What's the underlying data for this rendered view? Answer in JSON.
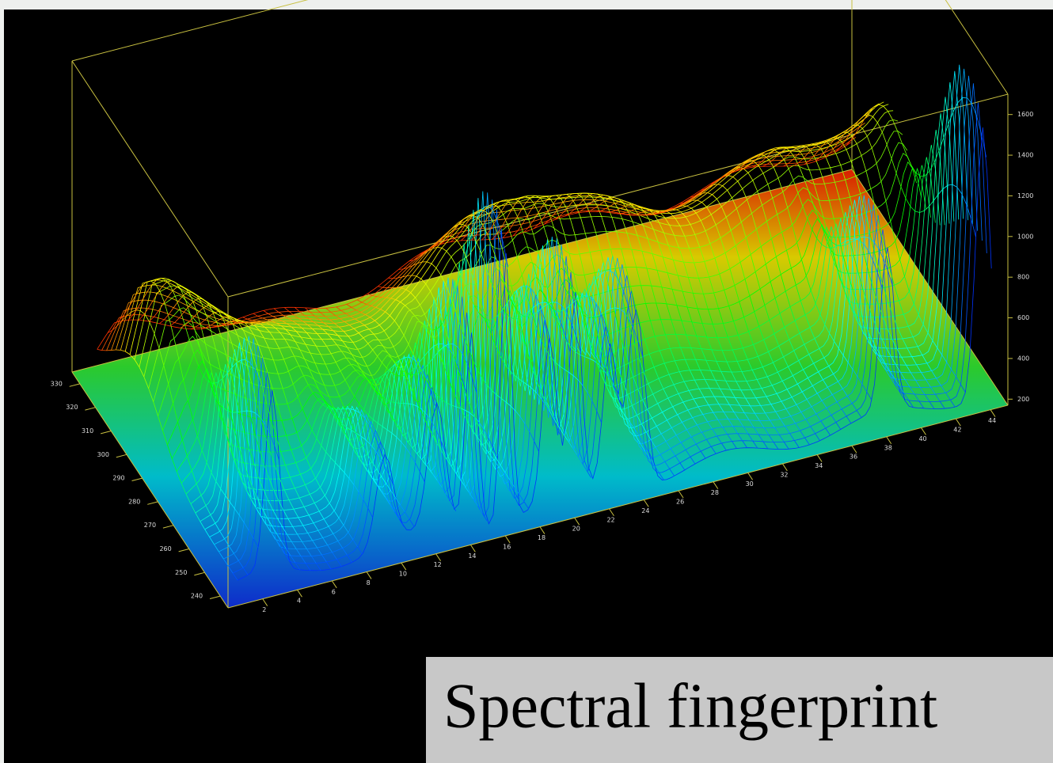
{
  "chart_data": {
    "type": "surface",
    "caption": "Spectral fingerprint",
    "xlim": [
      0,
      45
    ],
    "xticks": [
      2,
      4,
      6,
      8,
      10,
      12,
      14,
      16,
      18,
      20,
      22,
      24,
      26,
      28,
      30,
      32,
      34,
      36,
      38,
      40,
      42,
      44
    ],
    "ylim": [
      235,
      335
    ],
    "yticks": [
      240,
      250,
      260,
      270,
      280,
      290,
      300,
      310,
      320,
      330
    ],
    "zlim": [
      170,
      1700
    ],
    "zticks": [
      200,
      400,
      600,
      800,
      1000,
      1200,
      1400,
      1600
    ],
    "axis_color": "#c8c040"
  }
}
